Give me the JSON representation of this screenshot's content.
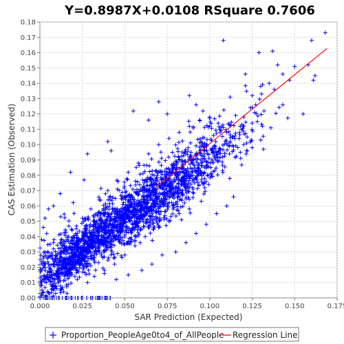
{
  "chart_data": {
    "type": "scatter",
    "title": "Y=0.8987X+0.0108    RSquare 0.7606",
    "xlabel": "SAR Prediction (Expected)",
    "ylabel": "CAS Estimation (Observed)",
    "xlim": [
      0.0,
      0.175
    ],
    "ylim": [
      0.0,
      0.18
    ],
    "x_ticks": [
      "0.000",
      "0.025",
      "0.050",
      "0.075",
      "0.100",
      "0.125",
      "0.150",
      "0.175"
    ],
    "y_ticks": [
      "0.00",
      "0.01",
      "0.02",
      "0.03",
      "0.04",
      "0.05",
      "0.06",
      "0.07",
      "0.08",
      "0.09",
      "0.10",
      "0.11",
      "0.12",
      "0.13",
      "0.14",
      "0.15",
      "0.16",
      "0.17",
      "0.18"
    ],
    "grid": true,
    "legend_position": "bottom",
    "series": [
      {
        "name": "Proportion_PeopleAge0to4_of_AllPeople",
        "marker": "plus",
        "color": "#0000ff",
        "points": [
          [
            0.168,
            0.173
          ],
          [
            0.16,
            0.168
          ],
          [
            0.108,
            0.168
          ],
          [
            0.137,
            0.161
          ],
          [
            0.129,
            0.16
          ],
          [
            0.158,
            0.152
          ],
          [
            0.14,
            0.152
          ],
          [
            0.15,
            0.151
          ],
          [
            0.121,
            0.146
          ],
          [
            0.143,
            0.146
          ],
          [
            0.162,
            0.145
          ],
          [
            0.161,
            0.142
          ],
          [
            0.147,
            0.142
          ],
          [
            0.135,
            0.14
          ],
          [
            0.13,
            0.138
          ],
          [
            0.138,
            0.136
          ],
          [
            0.125,
            0.132
          ],
          [
            0.112,
            0.131
          ],
          [
            0.143,
            0.126
          ],
          [
            0.155,
            0.12
          ],
          [
            0.132,
            0.122
          ],
          [
            0.12,
            0.118
          ],
          [
            0.128,
            0.115
          ],
          [
            0.118,
            0.112
          ],
          [
            0.131,
            0.112
          ],
          [
            0.136,
            0.111
          ],
          [
            0.122,
            0.105
          ],
          [
            0.112,
            0.102
          ],
          [
            0.125,
            0.098
          ],
          [
            0.118,
            0.095
          ],
          [
            0.13,
            0.103
          ],
          [
            0.11,
            0.108
          ],
          [
            0.105,
            0.114
          ],
          [
            0.1,
            0.118
          ],
          [
            0.096,
            0.122
          ],
          [
            0.092,
            0.126
          ],
          [
            0.088,
            0.132
          ],
          [
            0.07,
            0.128
          ],
          [
            0.075,
            0.12
          ],
          [
            0.055,
            0.122
          ],
          [
            0.064,
            0.116
          ],
          [
            0.042,
            0.096
          ],
          [
            0.04,
            0.102
          ],
          [
            0.028,
            0.094
          ],
          [
            0.026,
            0.077
          ],
          [
            0.018,
            0.082
          ],
          [
            0.012,
            0.068
          ],
          [
            0.008,
            0.06
          ],
          [
            0.005,
            0.058
          ],
          [
            0.003,
            0.052
          ],
          [
            0.002,
            0.046
          ],
          [
            0.004,
            0.042
          ],
          [
            0.001,
            0.038
          ],
          [
            0.006,
            0.035
          ],
          [
            0.003,
            0.03
          ],
          [
            0.002,
            0.026
          ],
          [
            0.005,
            0.022
          ],
          [
            0.003,
            0.018
          ],
          [
            0.004,
            0.014
          ],
          [
            0.006,
            0.011
          ],
          [
            0.008,
            0.008
          ],
          [
            0.01,
            0.006
          ],
          [
            0.012,
            0.005
          ],
          [
            0.014,
            0.004
          ],
          [
            0.016,
            0.003
          ],
          [
            0.045,
            0.012
          ],
          [
            0.052,
            0.015
          ],
          [
            0.06,
            0.018
          ],
          [
            0.066,
            0.022
          ],
          [
            0.072,
            0.028
          ],
          [
            0.08,
            0.03
          ],
          [
            0.086,
            0.036
          ],
          [
            0.092,
            0.042
          ],
          [
            0.098,
            0.048
          ],
          [
            0.104,
            0.055
          ],
          [
            0.11,
            0.06
          ],
          [
            0.114,
            0.066
          ],
          [
            0.095,
            0.063
          ],
          [
            0.088,
            0.058
          ],
          [
            0.082,
            0.055
          ],
          [
            0.076,
            0.05
          ],
          [
            0.07,
            0.046
          ],
          [
            0.062,
            0.04
          ],
          [
            0.056,
            0.034
          ],
          [
            0.05,
            0.028
          ],
          [
            0.044,
            0.022
          ],
          [
            0.038,
            0.018
          ],
          [
            0.032,
            0.014
          ],
          [
            0.028,
            0.01
          ],
          [
            0.022,
            0.012
          ],
          [
            0.018,
            0.016
          ],
          [
            0.015,
            0.02
          ],
          [
            0.012,
            0.024
          ],
          [
            0.01,
            0.028
          ],
          [
            0.008,
            0.032
          ],
          [
            0.025,
            0.052
          ],
          [
            0.03,
            0.058
          ],
          [
            0.035,
            0.064
          ],
          [
            0.04,
            0.07
          ],
          [
            0.046,
            0.076
          ],
          [
            0.052,
            0.082
          ],
          [
            0.058,
            0.088
          ],
          [
            0.064,
            0.094
          ],
          [
            0.07,
            0.1
          ],
          [
            0.076,
            0.104
          ],
          [
            0.082,
            0.108
          ],
          [
            0.088,
            0.112
          ],
          [
            0.094,
            0.116
          ],
          [
            0.1,
            0.112
          ],
          [
            0.106,
            0.11
          ]
        ],
        "cloud": [
          {
            "cx": 0.045,
            "cy": 0.047,
            "sx": 0.02,
            "sy": 0.014,
            "n": 900
          },
          {
            "cx": 0.072,
            "cy": 0.072,
            "sx": 0.018,
            "sy": 0.015,
            "n": 600
          },
          {
            "cx": 0.025,
            "cy": 0.032,
            "sx": 0.011,
            "sy": 0.012,
            "n": 400
          },
          {
            "cx": 0.1,
            "cy": 0.095,
            "sx": 0.016,
            "sy": 0.016,
            "n": 250
          },
          {
            "cx": 0.012,
            "cy": 0.015,
            "sx": 0.008,
            "sy": 0.008,
            "n": 150
          }
        ]
      }
    ],
    "regression": {
      "name": "Regression Line",
      "color": "#ff0000",
      "slope": 0.8987,
      "intercept": 0.0108,
      "x_range": [
        0.068,
        0.169
      ]
    },
    "legend": [
      {
        "label": "Proportion_PeopleAge0to4_of_AllPeople",
        "kind": "plus",
        "color": "#0000ff"
      },
      {
        "label": "Regression Line",
        "kind": "line",
        "color": "#ff0000"
      }
    ]
  }
}
